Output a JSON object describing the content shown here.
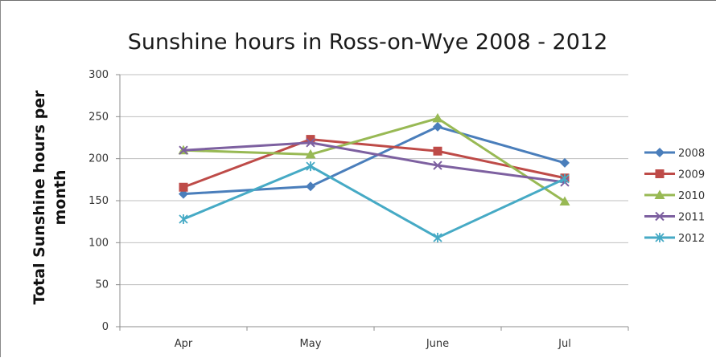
{
  "chart_data": {
    "type": "line",
    "title": "Sunshine hours in Ross-on-Wye 2008 - 2012",
    "xlabel": "",
    "ylabel_lines": [
      "Total Sunshine hours per",
      "month"
    ],
    "categories": [
      "Apr",
      "May",
      "June",
      "Jul"
    ],
    "ylim": [
      0,
      300
    ],
    "yticks": [
      0,
      50,
      100,
      150,
      200,
      250,
      300
    ],
    "grid": true,
    "legend_position": "right",
    "series": [
      {
        "name": "2008",
        "color": "#4a7ebb",
        "marker": "diamond",
        "values": [
          158,
          167,
          238,
          195
        ]
      },
      {
        "name": "2009",
        "color": "#be4b48",
        "marker": "square",
        "values": [
          166,
          223,
          209,
          177
        ]
      },
      {
        "name": "2010",
        "color": "#98b954",
        "marker": "triangle",
        "values": [
          210,
          205,
          248,
          149
        ]
      },
      {
        "name": "2011",
        "color": "#7d60a0",
        "marker": "x",
        "values": [
          210,
          219,
          192,
          172
        ]
      },
      {
        "name": "2012",
        "color": "#46aac5",
        "marker": "star",
        "values": [
          128,
          191,
          106,
          176
        ]
      }
    ]
  }
}
